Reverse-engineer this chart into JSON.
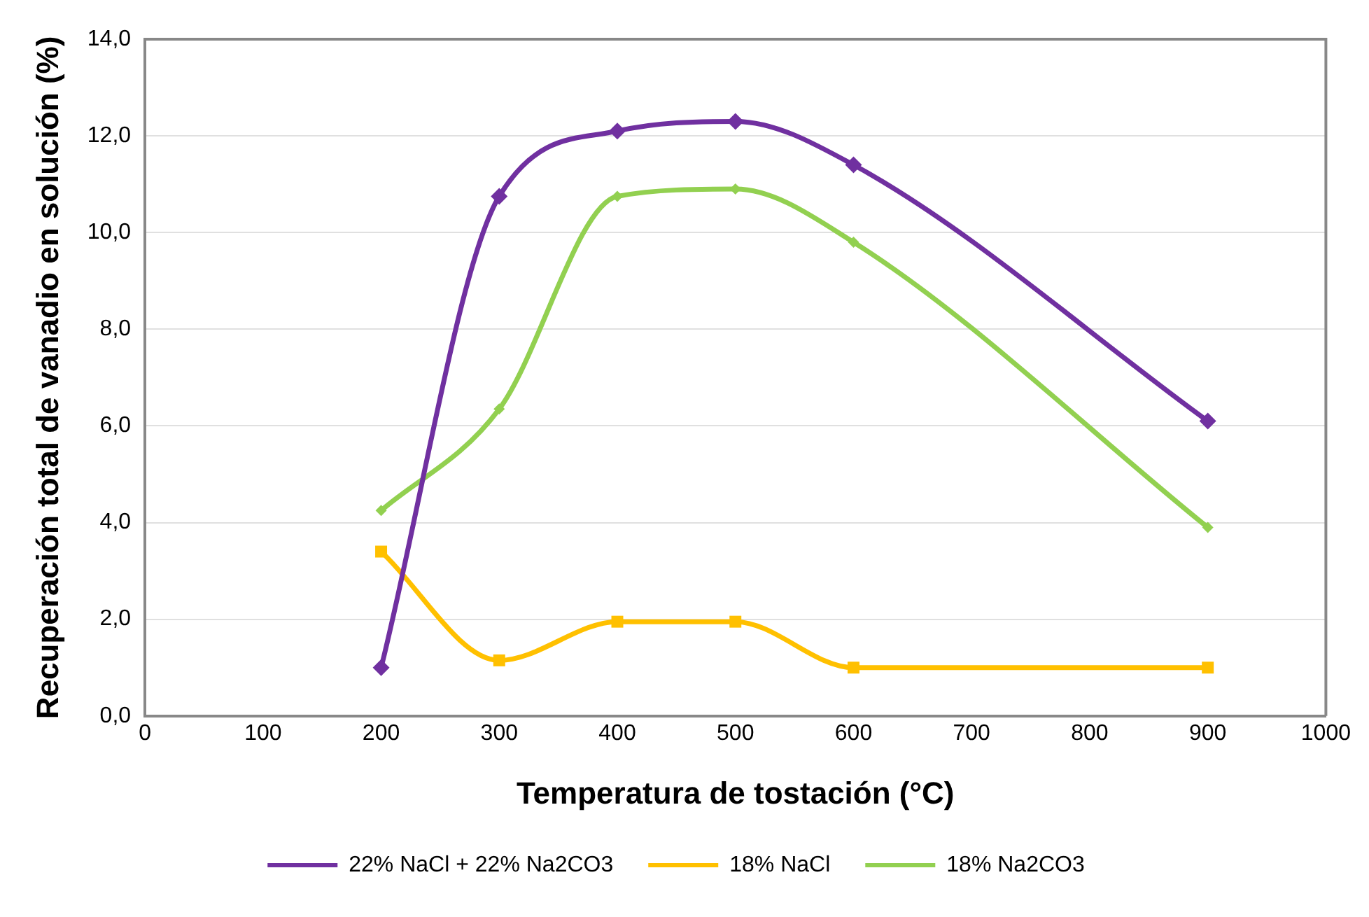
{
  "chart_data": {
    "type": "line",
    "xlabel": "Temperatura de tostación (°C)",
    "ylabel": "Recuperación total de vanadio en solución (%)",
    "xlim": [
      0,
      1000
    ],
    "xticks": [
      0,
      100,
      200,
      300,
      400,
      500,
      600,
      700,
      800,
      900,
      1000
    ],
    "ylim": [
      0,
      14
    ],
    "yticks": [
      {
        "value": 0,
        "label": "0,0"
      },
      {
        "value": 2,
        "label": "2,0"
      },
      {
        "value": 4,
        "label": "4,0"
      },
      {
        "value": 6,
        "label": "6,0"
      },
      {
        "value": 8,
        "label": "8,0"
      },
      {
        "value": 10,
        "label": "10,0"
      },
      {
        "value": 12,
        "label": "12,0"
      },
      {
        "value": 14,
        "label": "14,0"
      }
    ],
    "x": [
      200,
      300,
      400,
      500,
      600,
      900
    ],
    "grid": "y",
    "legend": "bottom",
    "line_style": "solid",
    "series": [
      {
        "name": "22% NaCl + 22% Na2CO3",
        "color": "#7030a0",
        "marker": "diamond",
        "values": [
          1.0,
          10.75,
          12.1,
          12.3,
          11.4,
          6.1
        ]
      },
      {
        "name": "18% NaCl",
        "color": "#ffc000",
        "marker": "square",
        "values": [
          3.4,
          1.15,
          1.95,
          1.95,
          1.0,
          1.0
        ]
      },
      {
        "name": "18% Na2CO3",
        "color": "#92d050",
        "marker": "diamond",
        "values": [
          4.25,
          6.35,
          10.75,
          10.9,
          9.8,
          3.9
        ]
      }
    ]
  }
}
